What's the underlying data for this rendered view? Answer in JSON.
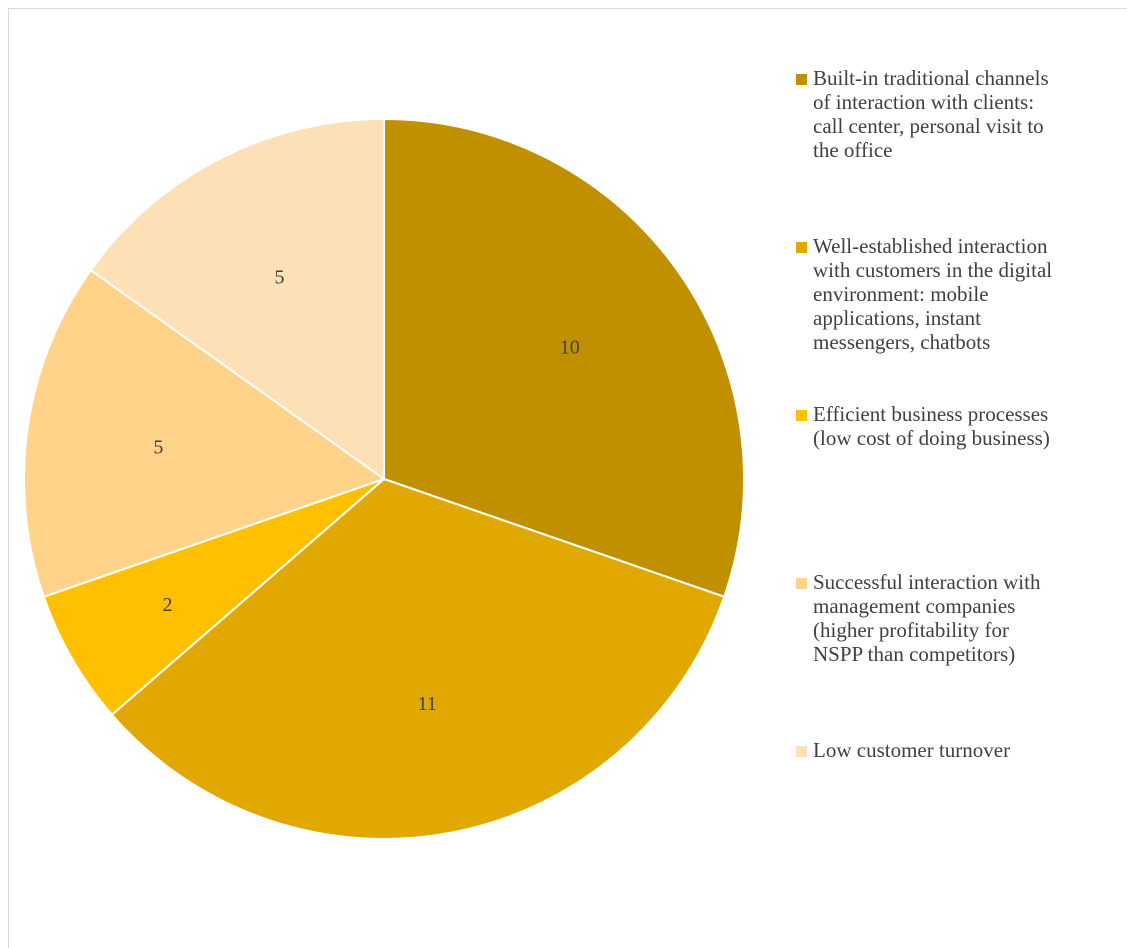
{
  "chart_data": {
    "type": "pie",
    "start_angle_deg": 0,
    "direction": "clockwise",
    "slices": [
      {
        "label": "Built-in traditional channels\nof interaction with clients:\ncall center, personal visit to\nthe office",
        "value": 10,
        "color": "#C09000"
      },
      {
        "label": "Well-established interaction\nwith customers in the digital\nenvironment: mobile\napplications, instant\nmessengers, chatbots",
        "value": 11,
        "color": "#E0A800"
      },
      {
        "label": "Efficient business processes\n(low cost of doing business)",
        "value": 2,
        "color": "#FFC000"
      },
      {
        "label": "Successful interaction with\nmanagement companies\n(higher profitability for\nNSPP than competitors)",
        "value": 5,
        "color": "#FFD38A"
      },
      {
        "label": "Low customer turnover",
        "value": 5,
        "color": "#FDE0B6"
      }
    ],
    "data_labels": true,
    "legend_position": "right"
  }
}
